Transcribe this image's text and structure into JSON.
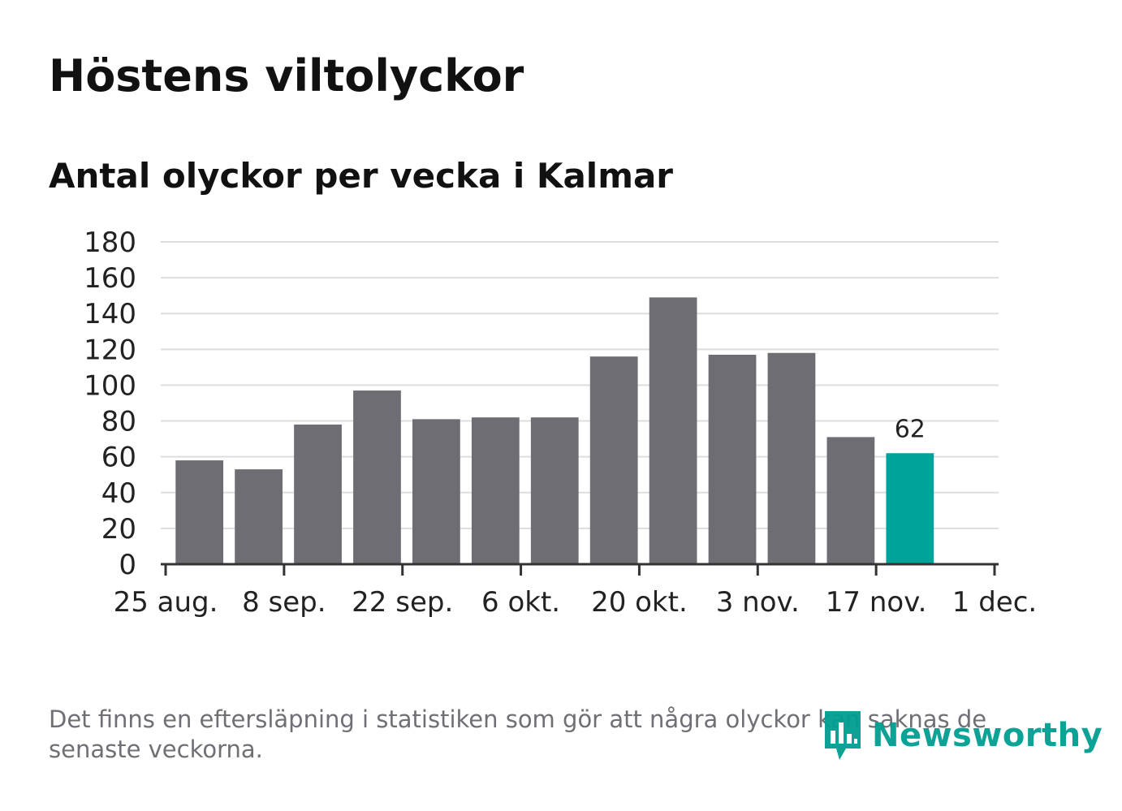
{
  "header": {
    "title": "Höstens viltolyckor",
    "subtitle": "Antal olyckor per vecka i Kalmar"
  },
  "footer": {
    "note": "Det finns en eftersläpning i statistiken som gör att några olyckor kan saknas de senaste veckorna.",
    "logo_text": "Newsworthy",
    "logo_icon": "bar-chart-speech-icon"
  },
  "colors": {
    "bar": "#6e6d73",
    "highlight": "#00a39a",
    "grid": "#dddddd",
    "axis": "#333333",
    "text": "#222222"
  },
  "chart_data": {
    "type": "bar",
    "x": [
      "2019-08-26",
      "2019-09-02",
      "2019-09-09",
      "2019-09-16",
      "2019-09-23",
      "2019-09-30",
      "2019-10-07",
      "2019-10-14",
      "2019-10-21",
      "2019-10-28",
      "2019-11-04",
      "2019-11-11",
      "2019-11-18"
    ],
    "values": [
      58,
      53,
      78,
      97,
      81,
      82,
      82,
      116,
      149,
      117,
      118,
      71,
      62
    ],
    "highlight_index": 12,
    "highlight_label": "62",
    "ylim": [
      0,
      180
    ],
    "yticks": [
      "0",
      "20",
      "40",
      "60",
      "80",
      "100",
      "120",
      "140",
      "160",
      "180"
    ],
    "xticks": [
      {
        "date": "2019-08-25",
        "label": "25 aug."
      },
      {
        "date": "2019-09-08",
        "label": "8 sep."
      },
      {
        "date": "2019-09-22",
        "label": "22 sep."
      },
      {
        "date": "2019-10-06",
        "label": "6 okt."
      },
      {
        "date": "2019-10-20",
        "label": "20 okt."
      },
      {
        "date": "2019-11-03",
        "label": "3 nov."
      },
      {
        "date": "2019-11-17",
        "label": "17 nov."
      },
      {
        "date": "2019-12-01",
        "label": "1 dec."
      }
    ],
    "grid": true
  }
}
